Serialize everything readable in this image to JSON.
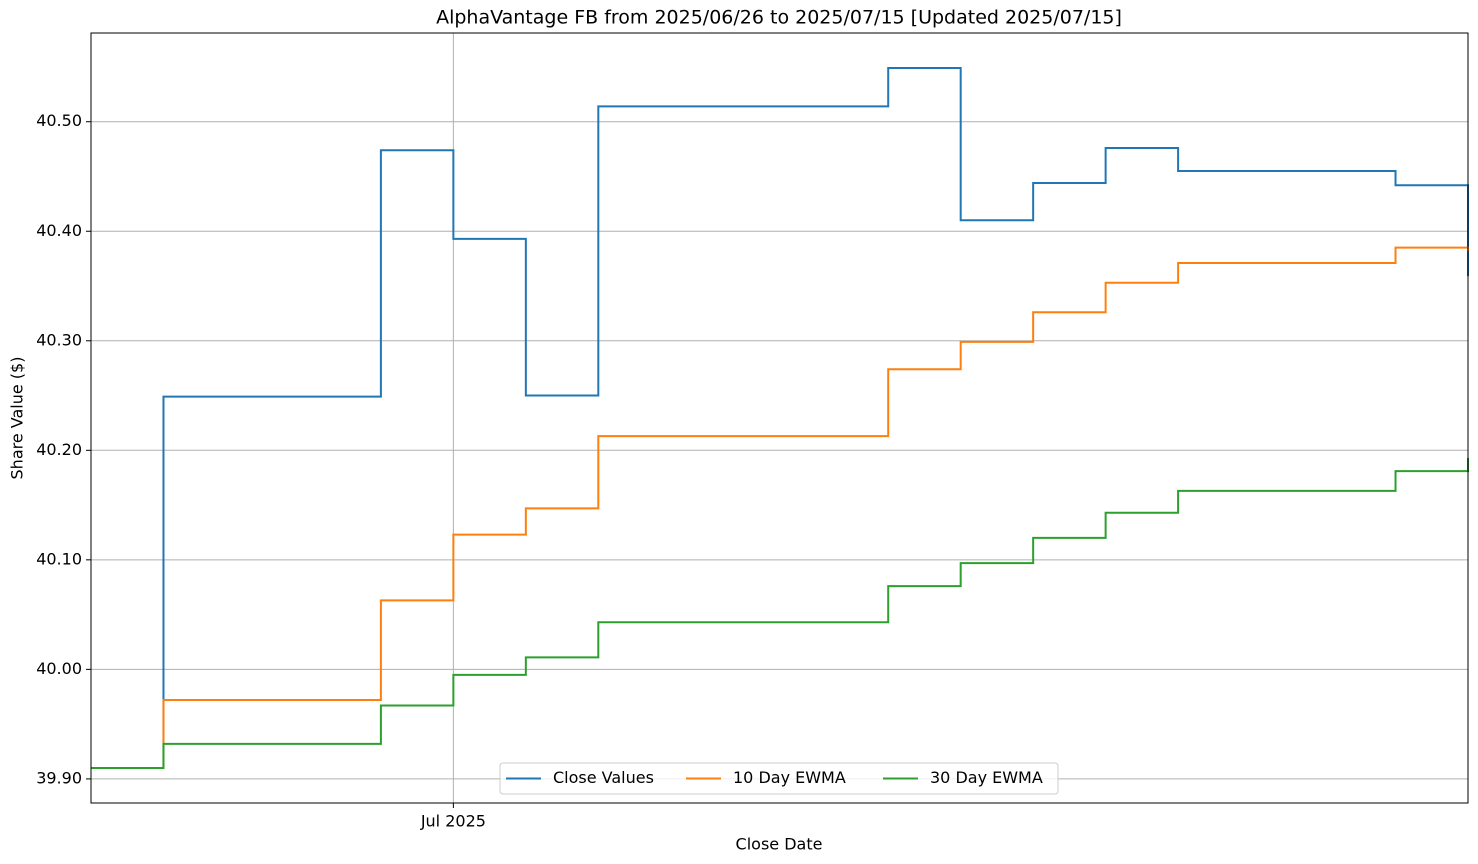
{
  "chart_data": {
    "type": "line",
    "step": "post",
    "title": "AlphaVantage FB from 2025/06/26 to 2025/07/15 [Updated 2025/07/15]",
    "x_label": "Close Date",
    "y_label": "Share Value ($)",
    "x": [
      "2025-06-26",
      "2025-06-27",
      "2025-06-30",
      "2025-07-01",
      "2025-07-02",
      "2025-07-03",
      "2025-07-07",
      "2025-07-08",
      "2025-07-09",
      "2025-07-10",
      "2025-07-11",
      "2025-07-14",
      "2025-07-15"
    ],
    "series": [
      {
        "name": "Close Values",
        "color": "#1f77b4",
        "values": [
          39.91,
          40.249,
          40.474,
          40.393,
          40.25,
          40.514,
          40.549,
          40.41,
          40.444,
          40.476,
          40.455,
          40.442,
          40.359
        ]
      },
      {
        "name": "10 Day EWMA",
        "color": "#ff7f0e",
        "values": [
          39.91,
          39.972,
          40.063,
          40.123,
          40.147,
          40.213,
          40.274,
          40.299,
          40.326,
          40.353,
          40.371,
          40.385,
          40.382
        ]
      },
      {
        "name": "30 Day EWMA",
        "color": "#2ca02c",
        "values": [
          39.91,
          39.932,
          39.967,
          39.995,
          40.011,
          40.043,
          40.076,
          40.097,
          40.12,
          40.143,
          40.163,
          40.181,
          40.193
        ]
      }
    ],
    "xlim": [
      "2025-06-26",
      "2025-07-15"
    ],
    "xticks": [
      {
        "value": "2025-07-01",
        "label": "Jul 2025"
      }
    ],
    "ylim": [
      39.878,
      40.581
    ],
    "yticks": [
      {
        "value": 39.9,
        "label": "39.90"
      },
      {
        "value": 40.0,
        "label": "40.00"
      },
      {
        "value": 40.1,
        "label": "40.10"
      },
      {
        "value": 40.2,
        "label": "40.20"
      },
      {
        "value": 40.3,
        "label": "40.30"
      },
      {
        "value": 40.4,
        "label": "40.40"
      },
      {
        "value": 40.5,
        "label": "40.50"
      }
    ],
    "grid": true,
    "legend": "lower center"
  }
}
